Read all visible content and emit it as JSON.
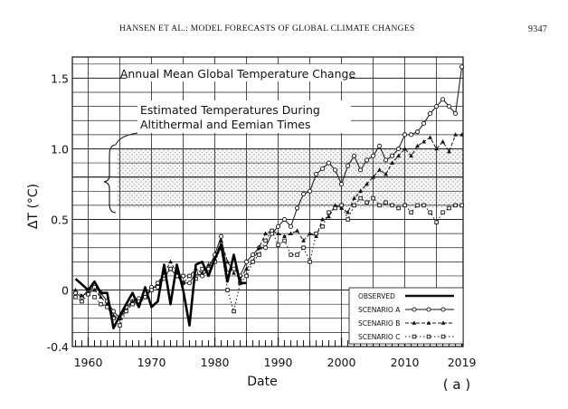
{
  "header": {
    "running_title": "HANSEN ET AL.: MODEL FORECASTS OF GLOBAL CLIMATE CHANGES",
    "page_number": "9347"
  },
  "chart_data": {
    "type": "line",
    "title": "Annual Mean Global Temperature Change",
    "xlabel": "Date",
    "ylabel": "ΔT (°C)",
    "panel_label": "( a )",
    "xlim": [
      1957.5,
      2019.2
    ],
    "ylim": [
      -0.4,
      1.65
    ],
    "x_ticks": [
      1960,
      1970,
      1980,
      1990,
      2000,
      2010,
      2019
    ],
    "x_tick_labels": [
      "1960",
      "1970",
      "1980",
      "1990",
      "2000",
      "2010",
      "2019"
    ],
    "y_ticks": [
      -0.4,
      0,
      0.5,
      1.0,
      1.5
    ],
    "y_tick_labels": [
      "-0.4",
      "0",
      "0.5",
      "1.0",
      "1.5"
    ],
    "grid": true,
    "shaded_band": {
      "y_from": 0.58,
      "y_to": 1.0,
      "x_from": 1964.5,
      "x_to": 2019.2
    },
    "band_lines": [
      0.8
    ],
    "annotation": {
      "line1": "Estimated Temperatures During",
      "line2": "Altithermal and Eemian Times"
    },
    "legend": {
      "placement": "bottom-right",
      "entries": [
        "OBSERVED",
        "SCENARIO A",
        "SCENARIO B",
        "SCENARIO C"
      ]
    },
    "series": [
      {
        "name": "OBSERVED",
        "color": "#000000",
        "x": [
          1958,
          1959,
          1960,
          1961,
          1962,
          1963,
          1964,
          1965,
          1966,
          1967,
          1968,
          1969,
          1970,
          1971,
          1972,
          1973,
          1974,
          1975,
          1976,
          1977,
          1978,
          1979,
          1980,
          1981,
          1982,
          1983,
          1984,
          1985
        ],
        "values": [
          0.08,
          0.04,
          0.0,
          0.06,
          -0.02,
          -0.02,
          -0.27,
          -0.18,
          -0.1,
          -0.02,
          -0.12,
          0.02,
          -0.12,
          -0.08,
          0.18,
          -0.1,
          0.18,
          0.0,
          -0.25,
          0.18,
          0.2,
          0.1,
          0.22,
          0.32,
          0.06,
          0.25,
          0.05,
          0.05
        ]
      },
      {
        "name": "SCENARIO A",
        "color": "#222222",
        "x": [
          1958,
          1959,
          1960,
          1961,
          1962,
          1963,
          1964,
          1965,
          1966,
          1967,
          1968,
          1969,
          1970,
          1971,
          1972,
          1973,
          1974,
          1975,
          1976,
          1977,
          1978,
          1979,
          1980,
          1981,
          1982,
          1983,
          1984,
          1985,
          1986,
          1987,
          1988,
          1989,
          1990,
          1991,
          1992,
          1993,
          1994,
          1995,
          1996,
          1997,
          1998,
          1999,
          2000,
          2001,
          2002,
          2003,
          2004,
          2005,
          2006,
          2007,
          2008,
          2009,
          2010,
          2011,
          2012,
          2013,
          2014,
          2015,
          2016,
          2017,
          2018,
          2019
        ],
        "values": [
          -0.02,
          -0.05,
          0.0,
          0.02,
          -0.02,
          -0.08,
          -0.15,
          -0.2,
          -0.12,
          -0.08,
          -0.06,
          -0.05,
          0.02,
          0.02,
          0.1,
          0.15,
          0.1,
          0.05,
          0.05,
          0.12,
          0.1,
          0.15,
          0.25,
          0.38,
          0.12,
          0.15,
          0.1,
          0.2,
          0.25,
          0.3,
          0.3,
          0.4,
          0.45,
          0.5,
          0.45,
          0.58,
          0.68,
          0.7,
          0.82,
          0.86,
          0.9,
          0.85,
          0.75,
          0.88,
          0.95,
          0.85,
          0.92,
          0.95,
          1.02,
          0.92,
          0.95,
          1.0,
          1.1,
          1.1,
          1.12,
          1.18,
          1.25,
          1.3,
          1.35,
          1.3,
          1.25,
          1.58
        ]
      },
      {
        "name": "SCENARIO B",
        "color": "#222222",
        "x": [
          1958,
          1959,
          1960,
          1961,
          1962,
          1963,
          1964,
          1965,
          1966,
          1967,
          1968,
          1969,
          1970,
          1971,
          1972,
          1973,
          1974,
          1975,
          1976,
          1977,
          1978,
          1979,
          1980,
          1981,
          1982,
          1983,
          1984,
          1985,
          1986,
          1987,
          1988,
          1989,
          1990,
          1991,
          1992,
          1993,
          1994,
          1995,
          1996,
          1997,
          1998,
          1999,
          2000,
          2001,
          2002,
          2003,
          2004,
          2005,
          2006,
          2007,
          2008,
          2009,
          2010,
          2011,
          2012,
          2013,
          2014,
          2015,
          2016,
          2017,
          2018,
          2019
        ],
        "values": [
          0.0,
          -0.04,
          -0.02,
          0.0,
          -0.05,
          -0.1,
          -0.18,
          -0.2,
          -0.15,
          -0.08,
          -0.1,
          -0.05,
          0.0,
          0.05,
          0.12,
          0.2,
          0.12,
          0.05,
          0.1,
          0.15,
          0.12,
          0.18,
          0.22,
          0.35,
          0.2,
          0.12,
          0.08,
          0.15,
          0.2,
          0.3,
          0.4,
          0.42,
          0.4,
          0.38,
          0.4,
          0.42,
          0.35,
          0.4,
          0.38,
          0.5,
          0.52,
          0.6,
          0.58,
          0.55,
          0.65,
          0.7,
          0.75,
          0.8,
          0.85,
          0.82,
          0.9,
          0.95,
          1.0,
          0.95,
          1.02,
          1.05,
          1.08,
          1.0,
          1.05,
          0.98,
          1.1,
          1.1
        ]
      },
      {
        "name": "SCENARIO C",
        "color": "#222222",
        "x": [
          1958,
          1959,
          1960,
          1961,
          1962,
          1963,
          1964,
          1965,
          1966,
          1967,
          1968,
          1969,
          1970,
          1971,
          1972,
          1973,
          1974,
          1975,
          1976,
          1977,
          1978,
          1979,
          1980,
          1981,
          1982,
          1983,
          1984,
          1985,
          1986,
          1987,
          1988,
          1989,
          1990,
          1991,
          1992,
          1993,
          1994,
          1995,
          1996,
          1997,
          1998,
          1999,
          2000,
          2001,
          2002,
          2003,
          2004,
          2005,
          2006,
          2007,
          2008,
          2009,
          2010,
          2011,
          2012,
          2013,
          2014,
          2015,
          2016,
          2017,
          2018,
          2019
        ],
        "values": [
          -0.05,
          -0.08,
          -0.03,
          -0.05,
          -0.1,
          -0.12,
          -0.2,
          -0.25,
          -0.15,
          -0.1,
          -0.08,
          -0.05,
          0.0,
          0.05,
          0.08,
          0.15,
          0.1,
          0.1,
          0.1,
          0.08,
          0.15,
          0.15,
          0.2,
          0.3,
          0.0,
          -0.15,
          0.05,
          0.1,
          0.2,
          0.25,
          0.35,
          0.42,
          0.32,
          0.35,
          0.25,
          0.25,
          0.3,
          0.2,
          0.4,
          0.45,
          0.55,
          0.58,
          0.6,
          0.5,
          0.6,
          0.65,
          0.62,
          0.65,
          0.6,
          0.62,
          0.6,
          0.58,
          0.6,
          0.55,
          0.6,
          0.6,
          0.55,
          0.48,
          0.55,
          0.58,
          0.6,
          0.6
        ]
      }
    ]
  }
}
